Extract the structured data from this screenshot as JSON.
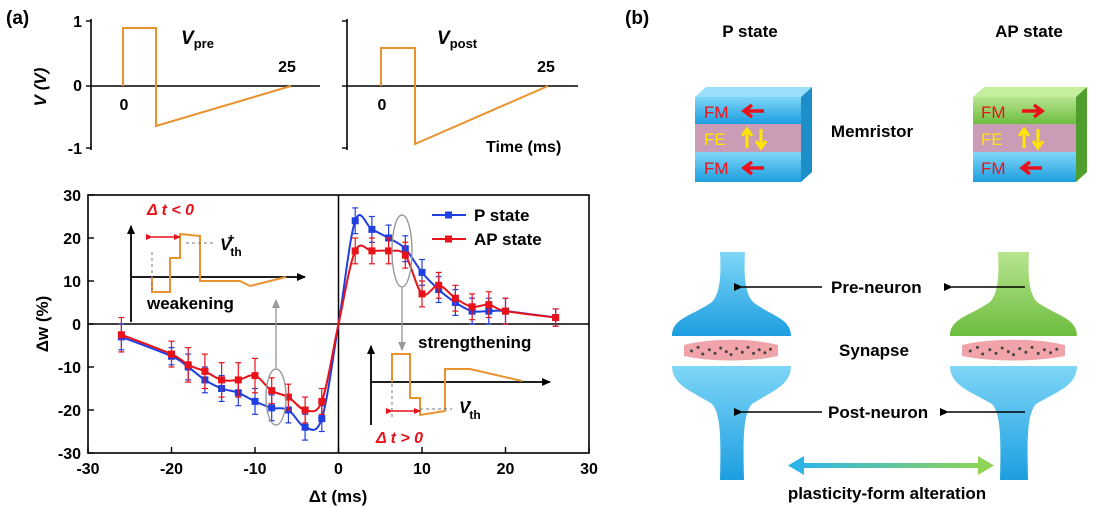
{
  "panel_a_label": "(a)",
  "panel_b_label": "(b)",
  "pulses": {
    "ylabel": "V (V)",
    "yticks": [
      "1",
      "0",
      "-1"
    ],
    "xlabel": "Time (ms)",
    "pre": {
      "name_main": "V",
      "name_sub": "pre",
      "tick0": "0",
      "tick25": "25"
    },
    "post": {
      "name_main": "V",
      "name_sub": "post",
      "tick0": "0",
      "tick25": "25"
    }
  },
  "chart_data": {
    "type": "line",
    "xlabel": "Δt (ms)",
    "ylabel": "Δw (%)",
    "xlim": [
      -30,
      30
    ],
    "ylim": [
      -30,
      30
    ],
    "xticks": [
      -30,
      -20,
      -10,
      0,
      10,
      20,
      30
    ],
    "yticks": [
      -30,
      -20,
      -10,
      0,
      10,
      20,
      30
    ],
    "legend_position": "top-right",
    "series": [
      {
        "name": "P state",
        "color": "#1f3fe0",
        "points": [
          {
            "x": -26,
            "y": -3,
            "err": 3
          },
          {
            "x": -20,
            "y": -7.5,
            "err": 2
          },
          {
            "x": -18,
            "y": -10,
            "err": 3
          },
          {
            "x": -16,
            "y": -13,
            "err": 3
          },
          {
            "x": -14,
            "y": -15,
            "err": 3
          },
          {
            "x": -12,
            "y": -16,
            "err": 3
          },
          {
            "x": -10,
            "y": -18,
            "err": 3
          },
          {
            "x": -8,
            "y": -19.5,
            "err": 3
          },
          {
            "x": -6,
            "y": -20,
            "err": 3
          },
          {
            "x": -4,
            "y": -24,
            "err": 3
          },
          {
            "x": -2,
            "y": -22,
            "err": 3
          },
          {
            "x": 2,
            "y": 24,
            "err": 3
          },
          {
            "x": 4,
            "y": 22,
            "err": 3
          },
          {
            "x": 6,
            "y": 20,
            "err": 3
          },
          {
            "x": 8,
            "y": 17.5,
            "err": 3
          },
          {
            "x": 10,
            "y": 12,
            "err": 3
          },
          {
            "x": 12,
            "y": 8,
            "err": 3
          },
          {
            "x": 14,
            "y": 5,
            "err": 3
          },
          {
            "x": 16,
            "y": 3,
            "err": 3
          },
          {
            "x": 18,
            "y": 3,
            "err": 3
          },
          {
            "x": 20,
            "y": 3,
            "err": 3
          },
          {
            "x": 26,
            "y": 1.5,
            "err": 2
          }
        ]
      },
      {
        "name": "AP state",
        "color": "#e8121a",
        "points": [
          {
            "x": -26,
            "y": -2.5,
            "err": 4
          },
          {
            "x": -20,
            "y": -7,
            "err": 3
          },
          {
            "x": -18,
            "y": -9.5,
            "err": 4
          },
          {
            "x": -16,
            "y": -11,
            "err": 4
          },
          {
            "x": -14,
            "y": -13,
            "err": 4
          },
          {
            "x": -12,
            "y": -13,
            "err": 4
          },
          {
            "x": -10,
            "y": -12,
            "err": 4
          },
          {
            "x": -8,
            "y": -15.5,
            "err": 3
          },
          {
            "x": -6,
            "y": -17,
            "err": 3
          },
          {
            "x": -4,
            "y": -20,
            "err": 3
          },
          {
            "x": -2,
            "y": -18,
            "err": 3
          },
          {
            "x": 2,
            "y": 17,
            "err": 3
          },
          {
            "x": 4,
            "y": 17,
            "err": 3
          },
          {
            "x": 6,
            "y": 17,
            "err": 3
          },
          {
            "x": 8,
            "y": 16,
            "err": 3
          },
          {
            "x": 10,
            "y": 7,
            "err": 3
          },
          {
            "x": 12,
            "y": 9,
            "err": 3
          },
          {
            "x": 14,
            "y": 6,
            "err": 3
          },
          {
            "x": 16,
            "y": 4,
            "err": 3
          },
          {
            "x": 18,
            "y": 4.5,
            "err": 3
          },
          {
            "x": 20,
            "y": 3,
            "err": 3
          },
          {
            "x": 26,
            "y": 1.5,
            "err": 2
          }
        ]
      }
    ],
    "annotations": {
      "weakening": "weakening",
      "strengthening": "strengthening",
      "dt_neg_main": "Δ",
      "dt_neg_rest": " t < 0",
      "dt_pos_main": "Δ",
      "dt_pos_rest": " t > 0",
      "vth_plus_main": "V",
      "vth_plus_sub": "th",
      "vth_plus_sup": "+",
      "vth_minus_main": "V",
      "vth_minus_sub": "th",
      "vth_minus_sup": "-"
    }
  },
  "diagram": {
    "p_state": "P state",
    "ap_state": "AP state",
    "memristor": "Memristor",
    "layer_fm": "FM",
    "layer_fe": "FE",
    "pre_neuron": "Pre-neuron",
    "synapse": "Synapse",
    "post_neuron": "Post-neuron",
    "alteration": "plasticity-form alteration",
    "colors": {
      "fm": "#29aee8",
      "fm_green": "#8cd05a",
      "fe": "#f0a3a8",
      "arrow_red": "#e8121a",
      "arrow_yellow": "#ffe600"
    }
  }
}
